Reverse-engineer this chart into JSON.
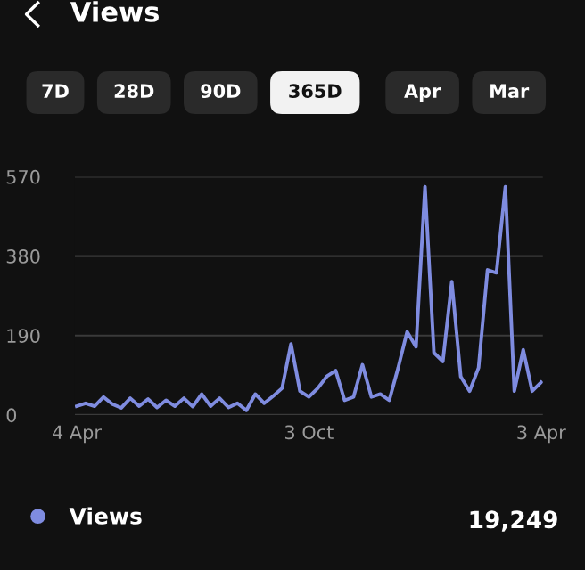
{
  "chart_data": {
    "type": "line",
    "title": "Views",
    "annotations": [
      "7D",
      "28D",
      "90D",
      "365D",
      "Apr",
      "Mar",
      "19,249"
    ],
    "categories": [
      "4 Apr",
      null,
      null,
      null,
      null,
      null,
      null,
      null,
      null,
      null,
      null,
      null,
      null,
      null,
      null,
      null,
      null,
      null,
      null,
      null,
      null,
      null,
      null,
      null,
      null,
      null,
      "3 Oct",
      null,
      null,
      null,
      null,
      null,
      null,
      null,
      null,
      null,
      null,
      null,
      null,
      null,
      null,
      null,
      null,
      null,
      null,
      null,
      null,
      null,
      null,
      null,
      null,
      null,
      "3 Apr"
    ],
    "series": [
      {
        "name": "Views",
        "color": "#7f8ce0",
        "values": [
          21,
          28,
          21,
          43,
          26,
          17,
          40,
          21,
          38,
          18,
          35,
          21,
          40,
          20,
          50,
          21,
          40,
          18,
          28,
          11,
          50,
          28,
          45,
          64,
          170,
          57,
          43,
          64,
          92,
          106,
          35,
          43,
          120,
          43,
          50,
          35,
          113,
          199,
          163,
          546,
          149,
          128,
          319,
          92,
          57,
          113,
          347,
          340,
          546,
          57,
          156,
          57,
          78
        ]
      }
    ],
    "ylim": [
      0,
      570
    ],
    "yticks": [
      0,
      190,
      380,
      570
    ],
    "grid": "y",
    "legend": "bottom left",
    "marker": "none",
    "line_style": "solid"
  }
}
